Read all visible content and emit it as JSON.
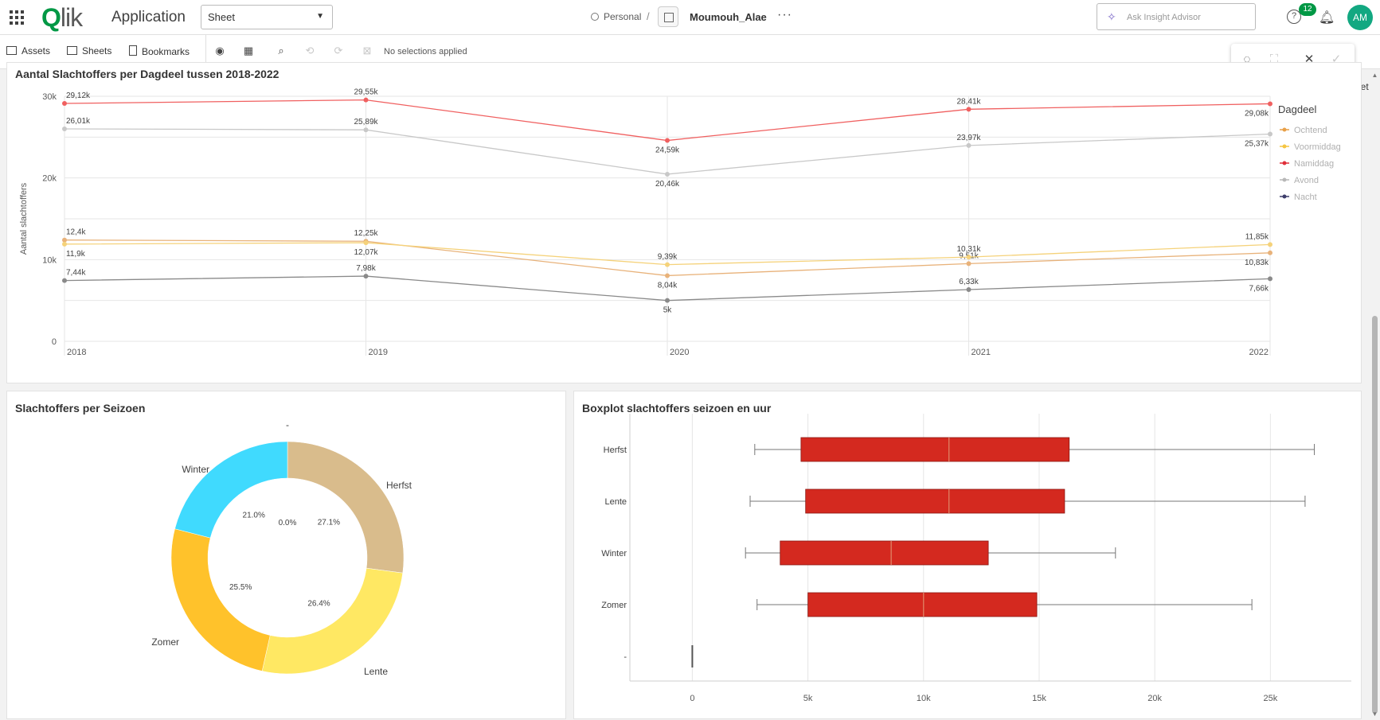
{
  "header": {
    "app_label": "Application",
    "sheet_select": "Sheet",
    "breadcrumb_personal": "Personal",
    "breadcrumb_sep": "/",
    "app_name": "Moumouh_Alae",
    "more": "···",
    "insight_placeholder": "Ask Insight Advisor",
    "help": "?",
    "notification_count": "12",
    "avatar_initials": "AM",
    "brand_color": "#009845"
  },
  "toolbar": {
    "assets": "Assets",
    "sheets": "Sheets",
    "bookmarks": "Bookmarks",
    "no_selections": "No selections applied",
    "sheet_edge": "eet"
  },
  "charts": {
    "line_title": "Aantal Slachtoffers per Dagdeel tussen 2018-2022",
    "donut_title": "Slachtoffers per Seizoen",
    "boxplot_title": "Boxplot slachtoffers seizoen en uur"
  },
  "chart_data": [
    {
      "type": "line",
      "title": "Aantal Slachtoffers per Dagdeel tussen 2018-2022",
      "ylabel": "Aantal slachtoffers",
      "xlabel": "",
      "x": [
        "2018",
        "2019",
        "2020",
        "2021",
        "2022"
      ],
      "ylim": [
        0,
        30000
      ],
      "yticks": [
        "0",
        "10k",
        "20k",
        "30k"
      ],
      "grid": true,
      "legend_title": "Dagdeel",
      "legend_position": "right",
      "series": [
        {
          "name": "Ochtend",
          "color": "#e8b27a",
          "values": [
            12400,
            12250,
            8040,
            9510,
            10830
          ],
          "labels": [
            "12,4k",
            "12,25k",
            "8,04k",
            "9,51k",
            "10,83k"
          ]
        },
        {
          "name": "Voormiddag",
          "color": "#f5d27a",
          "values": [
            11900,
            12070,
            9390,
            10310,
            11850
          ],
          "labels": [
            "11,9k",
            "12,07k",
            "9,39k",
            "10,31k",
            "11,85k"
          ]
        },
        {
          "name": "Namiddag",
          "color": "#f06060",
          "values": [
            29120,
            29550,
            24590,
            28410,
            29080
          ],
          "labels": [
            "29,12k",
            "29,55k",
            "24,59k",
            "28,41k",
            "29,08k"
          ]
        },
        {
          "name": "Avond",
          "color": "#c8c8c8",
          "values": [
            26010,
            25890,
            20460,
            23970,
            25370
          ],
          "labels": [
            "26,01k",
            "25,89k",
            "20,46k",
            "23,97k",
            "25,37k"
          ]
        },
        {
          "name": "Nacht",
          "color": "#8a8a8a",
          "values": [
            7440,
            7980,
            5000,
            6330,
            7660
          ],
          "labels": [
            "7,44k",
            "7,98k",
            "5k",
            "6,33k",
            "7,66k"
          ]
        }
      ],
      "legend_dot_colors": [
        "#e8a048",
        "#f5c542",
        "#e0303a",
        "#b8b8b8",
        "#3d3d6b"
      ]
    },
    {
      "type": "pie",
      "title": "Slachtoffers per Seizoen",
      "hole": true,
      "categories": [
        "-",
        "Herfst",
        "Lente",
        "Zomer",
        "Winter"
      ],
      "values": [
        0.0,
        27.1,
        26.4,
        25.5,
        21.0
      ],
      "labels": [
        "0.0%",
        "27.1%",
        "26.4%",
        "25.5%",
        "21.0%"
      ],
      "colors": [
        "#555555",
        "#d9bc8c",
        "#ffe863",
        "#ffc22b",
        "#40dafe"
      ]
    },
    {
      "type": "boxplot",
      "title": "Boxplot slachtoffers seizoen en uur",
      "categories": [
        "Herfst",
        "Lente",
        "Winter",
        "Zomer",
        "-"
      ],
      "xlim": [
        -2700,
        28500
      ],
      "xticks": [
        "0",
        "5k",
        "10k",
        "15k",
        "20k",
        "25k"
      ],
      "box_color": "#d4291f",
      "boxes": [
        {
          "min": 2700,
          "q1": 4700,
          "median": 11100,
          "q3": 16300,
          "max": 26900
        },
        {
          "min": 2500,
          "q1": 4900,
          "median": 11100,
          "q3": 16100,
          "max": 26500
        },
        {
          "min": 2300,
          "q1": 3800,
          "median": 8600,
          "q3": 12800,
          "max": 18300
        },
        {
          "min": 2800,
          "q1": 5000,
          "median": 10000,
          "q3": 14900,
          "max": 24200
        },
        {
          "min": 0,
          "q1": 0,
          "median": 0,
          "q3": 0,
          "max": 0
        }
      ]
    }
  ]
}
